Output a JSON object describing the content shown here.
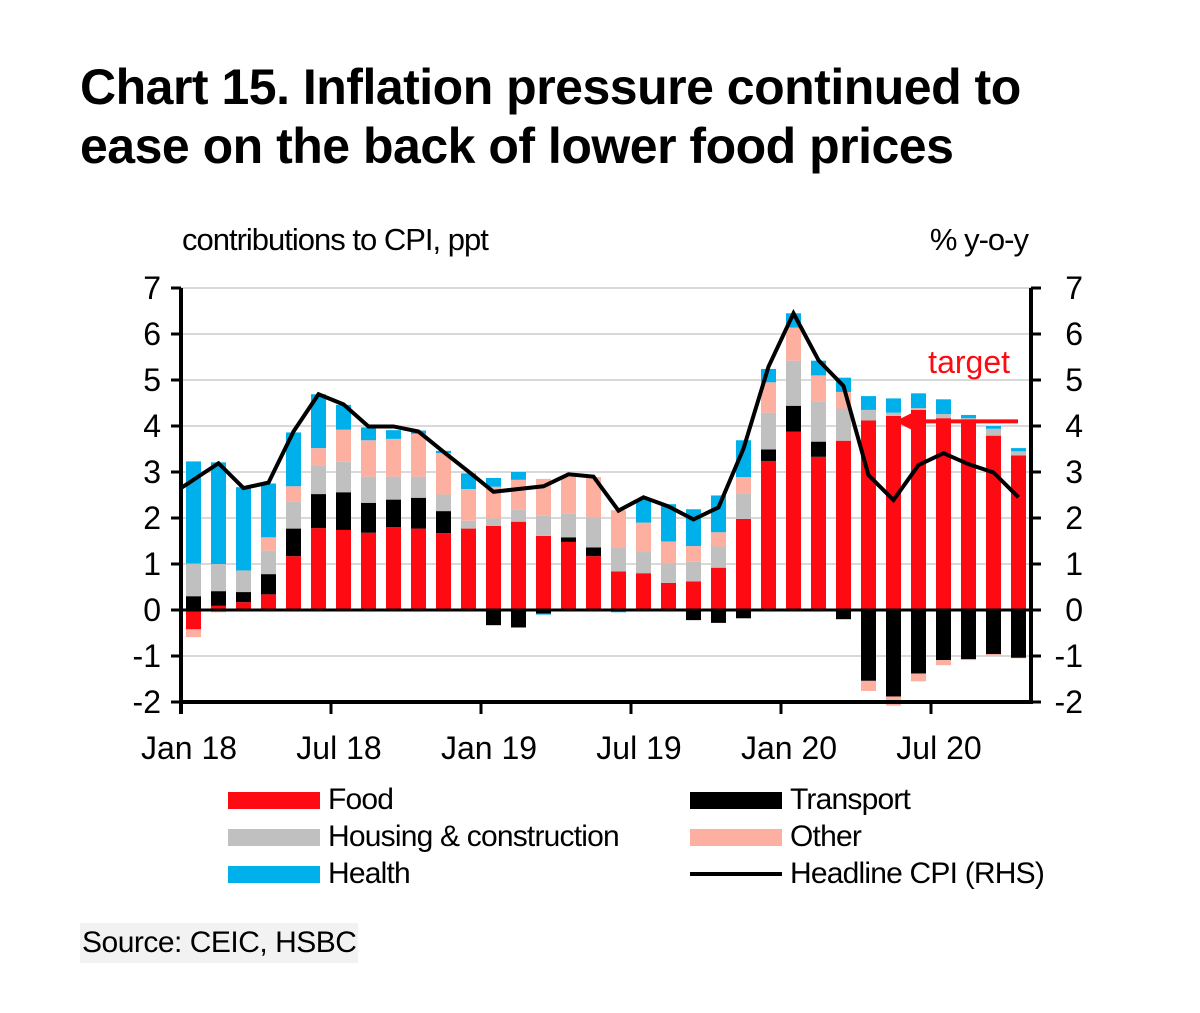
{
  "title": "Chart 15. Inflation pressure continued to ease on the back of lower food prices",
  "source": "Source: CEIC, HSBC",
  "colors": {
    "food": "#fe0a12",
    "transport": "#000000",
    "housing": "#c0c0c0",
    "other": "#fdb0a0",
    "health": "#00b0eb",
    "cpi": "#000000",
    "target": "#fe0a12",
    "grid": "#d9d9d9"
  },
  "legend": [
    {
      "key": "food",
      "label": "Food"
    },
    {
      "key": "transport",
      "label": "Transport"
    },
    {
      "key": "housing",
      "label": "Housing & construction"
    },
    {
      "key": "other",
      "label": "Other"
    },
    {
      "key": "health",
      "label": "Health"
    },
    {
      "key": "cpi",
      "label": "Headline CPI (RHS)"
    }
  ],
  "chart_data": {
    "type": "bar",
    "subtype": "stacked bar with line overlay",
    "title": "Chart 15. Inflation pressure continued to ease on the back of lower food prices",
    "ylabel": "contributions to CPI, ppt",
    "y2label": "% y-o-y",
    "xlabel": "",
    "ylim": [
      -2,
      7
    ],
    "y2lim": [
      -2,
      7
    ],
    "yticks": [
      "-2",
      "-1",
      "0",
      "1",
      "2",
      "3",
      "4",
      "5",
      "6",
      "7"
    ],
    "xtick_labels": [
      "Jan 18",
      "Jul 18",
      "Jan 19",
      "Jul 19",
      "Jan 20",
      "Jul 20"
    ],
    "grid": true,
    "legend_position": "bottom",
    "categories": [
      "Jan 18",
      "Feb 18",
      "Mar 18",
      "Apr 18",
      "May 18",
      "Jun 18",
      "Jul 18",
      "Aug 18",
      "Sep 18",
      "Oct 18",
      "Nov 18",
      "Dec 18",
      "Jan 19",
      "Feb 19",
      "Mar 19",
      "Apr 19",
      "May 19",
      "Jun 19",
      "Jul 19",
      "Aug 19",
      "Sep 19",
      "Oct 19",
      "Nov 19",
      "Dec 19",
      "Jan 20",
      "Feb 20",
      "Mar 20",
      "Apr 20",
      "May 20",
      "Jun 20",
      "Jul 20",
      "Aug 20",
      "Sep 20",
      "Oct 20"
    ],
    "series": [
      {
        "key": "food",
        "name": "Food",
        "type": "bar",
        "values": [
          -0.42,
          0.09,
          0.17,
          0.34,
          1.17,
          1.78,
          1.74,
          1.68,
          1.8,
          1.77,
          1.67,
          1.77,
          1.83,
          1.92,
          1.61,
          1.48,
          1.17,
          0.84,
          0.8,
          0.59,
          0.62,
          0.92,
          1.98,
          3.24,
          3.88,
          3.33,
          3.68,
          4.12,
          4.22,
          4.35,
          4.17,
          4.14,
          3.79,
          3.36
        ]
      },
      {
        "key": "transport",
        "name": "Transport",
        "type": "bar",
        "values": [
          0.3,
          0.32,
          0.22,
          0.44,
          0.6,
          0.74,
          0.82,
          0.65,
          0.6,
          0.67,
          0.48,
          0.0,
          -0.33,
          -0.38,
          -0.08,
          0.1,
          0.19,
          0.0,
          0.0,
          -0.03,
          -0.22,
          -0.28,
          -0.18,
          0.25,
          0.56,
          0.33,
          -0.2,
          -1.54,
          -1.88,
          -1.38,
          -1.09,
          -1.07,
          -0.96,
          -1.04
        ]
      },
      {
        "key": "housing",
        "name": "Housing & construction",
        "type": "bar",
        "values": [
          0.71,
          0.59,
          0.47,
          0.51,
          0.58,
          0.62,
          0.66,
          0.57,
          0.5,
          0.46,
          0.36,
          0.17,
          0.16,
          0.27,
          0.45,
          0.51,
          0.65,
          0.52,
          0.46,
          0.43,
          0.43,
          0.46,
          0.56,
          0.8,
          0.98,
          0.87,
          0.7,
          0.23,
          0.07,
          0.04,
          0.09,
          0.03,
          0.15,
          0.09
        ]
      },
      {
        "key": "other",
        "name": "Other",
        "type": "bar",
        "values": [
          -0.17,
          -0.05,
          0.0,
          0.29,
          0.34,
          0.38,
          0.7,
          0.79,
          0.82,
          0.93,
          0.9,
          0.69,
          0.69,
          0.64,
          0.79,
          0.81,
          0.88,
          0.81,
          0.64,
          0.47,
          0.34,
          0.31,
          0.35,
          0.66,
          0.72,
          0.57,
          0.36,
          -0.22,
          -0.2,
          -0.17,
          -0.11,
          -0.02,
          -0.03,
          -0.01
        ]
      },
      {
        "key": "health",
        "name": "Health",
        "type": "bar",
        "values": [
          2.22,
          2.21,
          1.81,
          1.17,
          1.17,
          1.17,
          0.54,
          0.28,
          0.19,
          0.07,
          0.05,
          0.34,
          0.19,
          0.17,
          -0.02,
          0.0,
          0.0,
          -0.05,
          0.51,
          0.81,
          0.8,
          0.8,
          0.8,
          0.29,
          0.31,
          0.32,
          0.31,
          0.3,
          0.31,
          0.32,
          0.32,
          0.07,
          0.06,
          0.07
        ]
      },
      {
        "key": "cpi",
        "name": "Headline CPI (RHS)",
        "type": "line",
        "axis": "right",
        "values": [
          2.65,
          3.19,
          2.65,
          2.77,
          3.88,
          4.69,
          4.47,
          3.99,
          3.99,
          3.88,
          3.44,
          3.01,
          2.57,
          2.63,
          2.69,
          2.95,
          2.9,
          2.16,
          2.45,
          2.25,
          1.97,
          2.23,
          3.51,
          5.29,
          6.45,
          5.43,
          4.87,
          2.93,
          2.39,
          3.15,
          3.41,
          3.17,
          2.99,
          2.45
        ]
      }
    ],
    "annotations": [
      {
        "text": "target",
        "type": "horizontal-arrow",
        "value": 4.1,
        "axis": "right",
        "from_category": "Oct 20",
        "to_category": "May 20"
      }
    ]
  }
}
